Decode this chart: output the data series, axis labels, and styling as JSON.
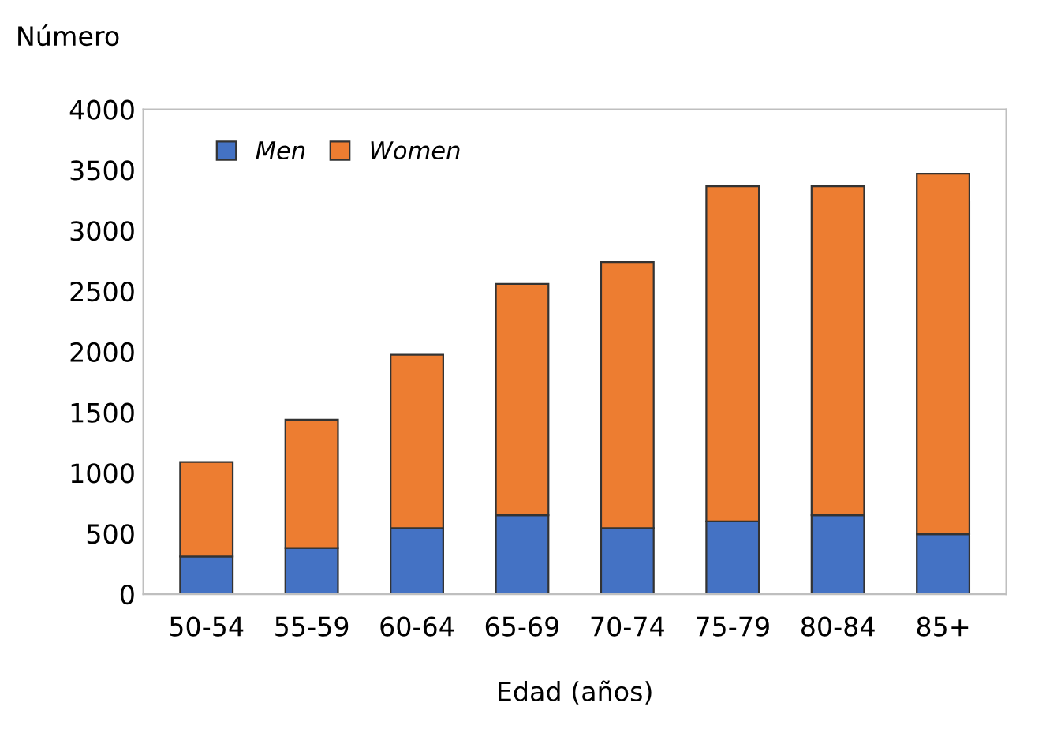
{
  "chart_data": {
    "type": "bar",
    "stacked": true,
    "ylabel": "Número",
    "xlabel": "Edad (años)",
    "categories": [
      "50-54",
      "55-59",
      "60-64",
      "65-69",
      "70-74",
      "75-79",
      "80-84",
      "85+"
    ],
    "series": [
      {
        "name": "Men",
        "color": "#4472c4",
        "values": [
          310,
          380,
          545,
          650,
          545,
          600,
          650,
          495
        ]
      },
      {
        "name": "Women",
        "color": "#ed7d31",
        "values": [
          780,
          1060,
          1430,
          1910,
          2195,
          2765,
          2715,
          2975
        ]
      }
    ],
    "ylim": [
      0,
      4000
    ],
    "yticks": [
      0,
      500,
      1000,
      1500,
      2000,
      2500,
      3000,
      3500,
      4000
    ],
    "grid": false,
    "legend": "top left"
  }
}
